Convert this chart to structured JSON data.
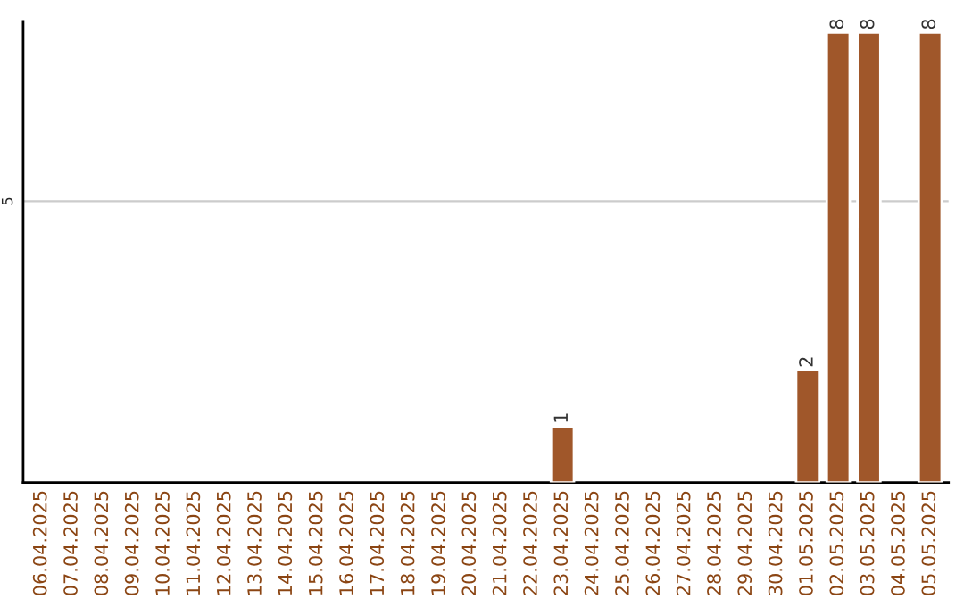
{
  "chart_data": {
    "type": "bar",
    "categories": [
      "06.04.2025",
      "07.04.2025",
      "08.04.2025",
      "09.04.2025",
      "10.04.2025",
      "11.04.2025",
      "12.04.2025",
      "13.04.2025",
      "14.04.2025",
      "15.04.2025",
      "16.04.2025",
      "17.04.2025",
      "18.04.2025",
      "19.04.2025",
      "20.04.2025",
      "21.04.2025",
      "22.04.2025",
      "23.04.2025",
      "24.04.2025",
      "25.04.2025",
      "26.04.2025",
      "27.04.2025",
      "28.04.2025",
      "29.04.2025",
      "30.04.2025",
      "01.05.2025",
      "02.05.2025",
      "03.05.2025",
      "04.05.2025",
      "05.05.2025"
    ],
    "values": [
      null,
      null,
      null,
      null,
      null,
      null,
      null,
      null,
      null,
      null,
      null,
      null,
      null,
      null,
      null,
      null,
      null,
      1,
      null,
      null,
      null,
      null,
      null,
      null,
      null,
      2,
      8,
      8,
      null,
      8
    ],
    "ylim": [
      0,
      8.2
    ],
    "value_labels": [
      null,
      null,
      null,
      null,
      null,
      null,
      null,
      null,
      null,
      null,
      null,
      null,
      null,
      null,
      null,
      null,
      null,
      "1",
      null,
      null,
      null,
      null,
      null,
      null,
      null,
      "2",
      "8",
      "8",
      null,
      "8"
    ],
    "color": "#a0572a",
    "ref_lines": [
      {
        "axis": "y",
        "value": 5,
        "label": "5",
        "color": "#cccccc"
      }
    ],
    "legend": false
  }
}
